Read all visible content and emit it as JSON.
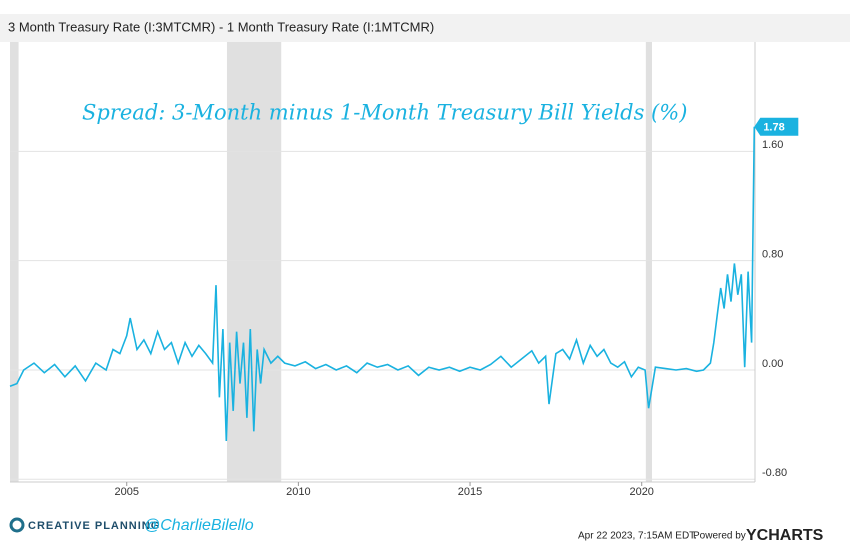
{
  "chart_data": {
    "type": "line",
    "title": "3 Month Treasury Rate (I:3MTCMR) - 1 Month Treasury Rate (I:1MTCMR)",
    "annotation": "Spread: 3-Month minus 1-Month Treasury Bill Yields (%)",
    "x": [
      2001.6,
      2001.8,
      2002.0,
      2002.3,
      2002.6,
      2002.9,
      2003.2,
      2003.5,
      2003.8,
      2004.1,
      2004.4,
      2004.6,
      2004.8,
      2005.0,
      2005.1,
      2005.3,
      2005.5,
      2005.7,
      2005.9,
      2006.1,
      2006.3,
      2006.5,
      2006.7,
      2006.9,
      2007.1,
      2007.3,
      2007.5,
      2007.6,
      2007.7,
      2007.8,
      2007.9,
      2008.0,
      2008.1,
      2008.2,
      2008.3,
      2008.4,
      2008.5,
      2008.6,
      2008.7,
      2008.8,
      2008.9,
      2009.0,
      2009.2,
      2009.4,
      2009.6,
      2009.9,
      2010.2,
      2010.5,
      2010.8,
      2011.1,
      2011.4,
      2011.7,
      2012.0,
      2012.3,
      2012.6,
      2012.9,
      2013.2,
      2013.5,
      2013.8,
      2014.1,
      2014.4,
      2014.7,
      2015.0,
      2015.3,
      2015.6,
      2015.9,
      2016.2,
      2016.5,
      2016.8,
      2017.0,
      2017.2,
      2017.3,
      2017.5,
      2017.7,
      2017.9,
      2018.1,
      2018.3,
      2018.5,
      2018.7,
      2018.9,
      2019.1,
      2019.3,
      2019.5,
      2019.7,
      2019.9,
      2020.1,
      2020.2,
      2020.4,
      2020.7,
      2021.0,
      2021.3,
      2021.6,
      2021.8,
      2022.0,
      2022.1,
      2022.2,
      2022.3,
      2022.4,
      2022.5,
      2022.6,
      2022.7,
      2022.8,
      2022.9,
      2023.0,
      2023.1,
      2023.2,
      2023.28
    ],
    "series": [
      {
        "name": "3 Month Treasury Rate (I:3MTCMR) - 1 Month Treasury Rate (I:1MTCMR)",
        "color": "#1ab2e0",
        "values": [
          -0.12,
          -0.1,
          0.0,
          0.05,
          -0.02,
          0.04,
          -0.05,
          0.03,
          -0.08,
          0.05,
          0.0,
          0.15,
          0.12,
          0.25,
          0.38,
          0.15,
          0.22,
          0.12,
          0.28,
          0.15,
          0.2,
          0.05,
          0.2,
          0.1,
          0.18,
          0.12,
          0.05,
          0.62,
          -0.2,
          0.3,
          -0.52,
          0.2,
          -0.3,
          0.28,
          -0.1,
          0.2,
          -0.35,
          0.3,
          -0.45,
          0.15,
          -0.1,
          0.15,
          0.05,
          0.1,
          0.05,
          0.03,
          0.06,
          0.01,
          0.04,
          0.0,
          0.03,
          -0.02,
          0.05,
          0.02,
          0.04,
          0.0,
          0.03,
          -0.04,
          0.02,
          0.0,
          0.02,
          -0.01,
          0.02,
          0.0,
          0.04,
          0.1,
          0.02,
          0.08,
          0.14,
          0.05,
          0.1,
          -0.25,
          0.12,
          0.15,
          0.08,
          0.22,
          0.05,
          0.18,
          0.1,
          0.15,
          0.05,
          0.02,
          0.06,
          -0.05,
          0.02,
          0.0,
          -0.28,
          0.02,
          0.01,
          0.0,
          0.01,
          -0.01,
          0.0,
          0.05,
          0.2,
          0.4,
          0.6,
          0.45,
          0.7,
          0.5,
          0.78,
          0.55,
          0.7,
          0.02,
          0.72,
          0.2,
          1.78
        ]
      }
    ],
    "last_value_label": 1.78,
    "shaded_ranges": [
      [
        2001.6,
        2001.85
      ],
      [
        2007.92,
        2009.5
      ],
      [
        2020.12,
        2020.3
      ]
    ],
    "xlim": [
      2001.6,
      2023.3
    ],
    "xticks": [
      2005,
      2010,
      2015,
      2020
    ],
    "ylim": [
      -0.82,
      2.4
    ],
    "yticks": [
      {
        "value": 1.6,
        "label": "1.60"
      },
      {
        "value": 0.8,
        "label": "0.80"
      },
      {
        "value": 0,
        "label": "0.00"
      },
      {
        "value": -0.8,
        "label": "-0.80"
      }
    ],
    "grid": true
  },
  "footer": {
    "brand": "CREATIVE PLANNING",
    "handle": "@CharlieBilello",
    "timestamp": "Apr 22 2023, 7:15AM EDT.",
    "powered": "Powered by",
    "ycharts": "YCHARTS"
  }
}
